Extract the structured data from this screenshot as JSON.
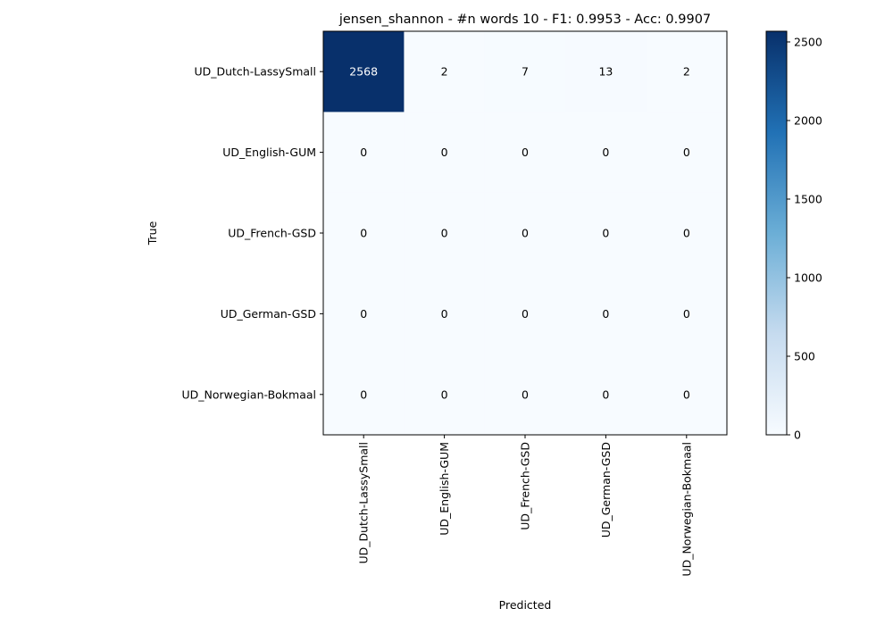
{
  "chart_data": {
    "type": "heatmap",
    "title": "jensen_shannon - #n words 10 - F1: 0.9953 - Acc: 0.9907",
    "xlabel": "Predicted",
    "ylabel": "True",
    "row_labels": [
      "UD_Dutch-LassySmall",
      "UD_English-GUM",
      "UD_French-GSD",
      "UD_German-GSD",
      "UD_Norwegian-Bokmaal"
    ],
    "col_labels": [
      "UD_Dutch-LassySmall",
      "UD_English-GUM",
      "UD_French-GSD",
      "UD_German-GSD",
      "UD_Norwegian-Bokmaal"
    ],
    "matrix": [
      [
        2568,
        2,
        7,
        13,
        2
      ],
      [
        0,
        0,
        0,
        0,
        0
      ],
      [
        0,
        0,
        0,
        0,
        0
      ],
      [
        0,
        0,
        0,
        0,
        0
      ],
      [
        0,
        0,
        0,
        0,
        0
      ]
    ],
    "colormap": "Blues",
    "color_low": "#f7fbff",
    "color_high": "#08306b",
    "colorbar": {
      "range": [
        0,
        2568
      ],
      "ticks": [
        "0",
        "500",
        "1000",
        "1500",
        "2000",
        "2500"
      ]
    },
    "grid": false
  }
}
